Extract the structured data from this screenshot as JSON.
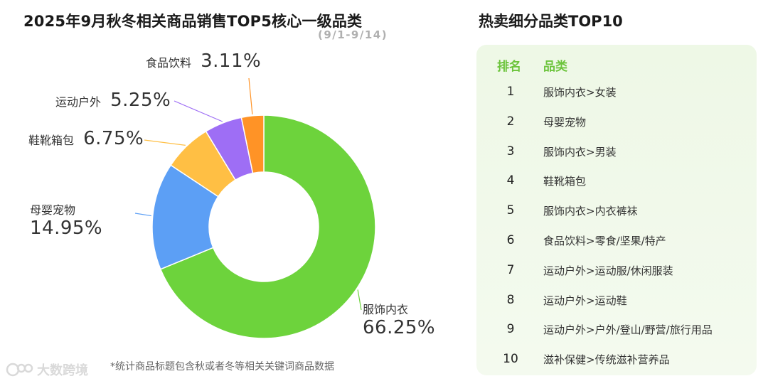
{
  "left_chart": {
    "title": "2025年9月秋冬相关商品销售TOP5核心一级品类",
    "subtitle": "(9/1-9/14)",
    "footnote": "*统计商品标题包含秋或者冬等相关关键词商品数据"
  },
  "watermark": {
    "text": "大数跨境"
  },
  "chart_data": {
    "type": "pie",
    "variant": "donut",
    "title": "2025年9月秋冬相关商品销售TOP5核心一级品类",
    "subtitle": "(9/1-9/14)",
    "categories": [
      "服饰内衣",
      "母婴宠物",
      "鞋靴箱包",
      "运动户外",
      "食品饮料"
    ],
    "values": [
      66.25,
      14.95,
      6.75,
      5.25,
      3.11
    ],
    "labels": [
      "66.25%",
      "14.95%",
      "6.75%",
      "5.25%",
      "3.11%"
    ],
    "colors": [
      "#6dd33c",
      "#5c9ff5",
      "#ffbf44",
      "#9e6ef5",
      "#ff9326"
    ],
    "legend": "none"
  },
  "right_panel": {
    "title": "热卖细分品类TOP10",
    "header": {
      "rank": "排名",
      "category": "品类"
    },
    "accent_color": "#6cc43c",
    "rows": [
      {
        "rank": "1",
        "category": "服饰内衣>女装"
      },
      {
        "rank": "2",
        "category": "母婴宠物"
      },
      {
        "rank": "3",
        "category": "服饰内衣>男装"
      },
      {
        "rank": "4",
        "category": "鞋靴箱包"
      },
      {
        "rank": "5",
        "category": "服饰内衣>内衣裤袜"
      },
      {
        "rank": "6",
        "category": "食品饮料>零食/坚果/特产"
      },
      {
        "rank": "7",
        "category": "运动户外>运动服/休闲服装"
      },
      {
        "rank": "8",
        "category": "运动户外>运动鞋"
      },
      {
        "rank": "9",
        "category": "运动户外>户外/登山/野营/旅行用品"
      },
      {
        "rank": "10",
        "category": "滋补保健>传统滋补营养品"
      }
    ]
  }
}
